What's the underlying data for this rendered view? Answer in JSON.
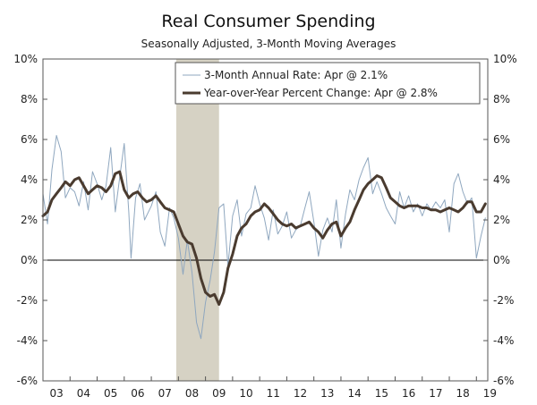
{
  "chart_data": {
    "type": "line",
    "title": "Real Consumer Spending",
    "subtitle": "Seasonally Adjusted, 3-Month Moving Averages",
    "xlabel": "",
    "ylabel": "",
    "x_tick_labels": [
      "03",
      "04",
      "05",
      "06",
      "07",
      "08",
      "09",
      "10",
      "11",
      "12",
      "13",
      "14",
      "15",
      "16",
      "17",
      "18",
      "19"
    ],
    "y_tick_labels": [
      "10%",
      "8%",
      "6%",
      "4%",
      "2%",
      "0%",
      "-2%",
      "-4%",
      "-6%"
    ],
    "y_tick_values": [
      10,
      8,
      6,
      4,
      2,
      0,
      -2,
      -4,
      -6
    ],
    "ylim": [
      -6,
      10
    ],
    "xlim": [
      2003.0,
      2019.42
    ],
    "recession": {
      "start": 2007.92,
      "end": 2009.5
    },
    "legend_placement": "top-right",
    "colors": {
      "three_month": "#8fa7bf",
      "yoy": "#4a3b2f",
      "recession": "#d6d2c4",
      "axis": "#555555"
    },
    "series": [
      {
        "name": "3-Month Annual Rate: Apr @ 2.1%",
        "key": "three_month",
        "points": [
          [
            2003.0,
            3.3
          ],
          [
            2003.17,
            1.8
          ],
          [
            2003.33,
            4.5
          ],
          [
            2003.5,
            6.2
          ],
          [
            2003.67,
            5.4
          ],
          [
            2003.83,
            3.1
          ],
          [
            2004.0,
            3.6
          ],
          [
            2004.17,
            3.4
          ],
          [
            2004.33,
            2.7
          ],
          [
            2004.5,
            3.9
          ],
          [
            2004.67,
            2.5
          ],
          [
            2004.83,
            4.4
          ],
          [
            2005.0,
            3.8
          ],
          [
            2005.17,
            3.0
          ],
          [
            2005.33,
            3.7
          ],
          [
            2005.5,
            5.6
          ],
          [
            2005.67,
            2.4
          ],
          [
            2005.83,
            4.1
          ],
          [
            2006.0,
            5.8
          ],
          [
            2006.17,
            2.4
          ],
          [
            2006.25,
            0.1
          ],
          [
            2006.42,
            3.1
          ],
          [
            2006.58,
            3.8
          ],
          [
            2006.75,
            2.0
          ],
          [
            2007.0,
            2.7
          ],
          [
            2007.17,
            3.4
          ],
          [
            2007.33,
            1.4
          ],
          [
            2007.5,
            0.7
          ],
          [
            2007.67,
            2.6
          ],
          [
            2007.83,
            2.1
          ],
          [
            2008.0,
            1.1
          ],
          [
            2008.17,
            -0.7
          ],
          [
            2008.33,
            1.0
          ],
          [
            2008.5,
            -0.6
          ],
          [
            2008.67,
            -3.1
          ],
          [
            2008.83,
            -3.9
          ],
          [
            2009.0,
            -2.1
          ],
          [
            2009.17,
            -1.0
          ],
          [
            2009.33,
            0.4
          ],
          [
            2009.5,
            2.6
          ],
          [
            2009.67,
            2.8
          ],
          [
            2009.83,
            -0.3
          ],
          [
            2010.0,
            2.2
          ],
          [
            2010.17,
            3.0
          ],
          [
            2010.33,
            1.2
          ],
          [
            2010.5,
            2.3
          ],
          [
            2010.67,
            2.6
          ],
          [
            2010.83,
            3.7
          ],
          [
            2011.0,
            2.8
          ],
          [
            2011.17,
            2.1
          ],
          [
            2011.33,
            1.0
          ],
          [
            2011.5,
            2.5
          ],
          [
            2011.67,
            1.3
          ],
          [
            2011.83,
            1.7
          ],
          [
            2012.0,
            2.4
          ],
          [
            2012.17,
            1.1
          ],
          [
            2012.33,
            1.5
          ],
          [
            2012.5,
            1.7
          ],
          [
            2012.67,
            2.6
          ],
          [
            2012.83,
            3.4
          ],
          [
            2013.0,
            1.9
          ],
          [
            2013.17,
            0.2
          ],
          [
            2013.33,
            1.5
          ],
          [
            2013.5,
            2.1
          ],
          [
            2013.67,
            1.4
          ],
          [
            2013.83,
            3.0
          ],
          [
            2014.0,
            0.6
          ],
          [
            2014.17,
            2.3
          ],
          [
            2014.33,
            3.5
          ],
          [
            2014.5,
            3.0
          ],
          [
            2014.67,
            4.0
          ],
          [
            2014.83,
            4.6
          ],
          [
            2015.0,
            5.1
          ],
          [
            2015.17,
            3.3
          ],
          [
            2015.33,
            3.9
          ],
          [
            2015.5,
            3.3
          ],
          [
            2015.67,
            2.6
          ],
          [
            2015.83,
            2.2
          ],
          [
            2016.0,
            1.8
          ],
          [
            2016.17,
            3.4
          ],
          [
            2016.33,
            2.6
          ],
          [
            2016.5,
            3.2
          ],
          [
            2016.67,
            2.4
          ],
          [
            2016.83,
            2.8
          ],
          [
            2017.0,
            2.2
          ],
          [
            2017.17,
            2.8
          ],
          [
            2017.33,
            2.5
          ],
          [
            2017.5,
            2.9
          ],
          [
            2017.67,
            2.6
          ],
          [
            2017.83,
            3.0
          ],
          [
            2018.0,
            1.4
          ],
          [
            2018.17,
            3.8
          ],
          [
            2018.33,
            4.3
          ],
          [
            2018.5,
            3.4
          ],
          [
            2018.67,
            2.8
          ],
          [
            2018.83,
            3.1
          ],
          [
            2019.0,
            0.1
          ],
          [
            2019.17,
            1.2
          ],
          [
            2019.33,
            2.1
          ]
        ]
      },
      {
        "name": "Year-over-Year Percent Change: Apr @ 2.8%",
        "key": "yoy",
        "points": [
          [
            2003.0,
            2.2
          ],
          [
            2003.17,
            2.4
          ],
          [
            2003.33,
            3.0
          ],
          [
            2003.5,
            3.3
          ],
          [
            2003.67,
            3.6
          ],
          [
            2003.83,
            3.9
          ],
          [
            2004.0,
            3.7
          ],
          [
            2004.17,
            4.0
          ],
          [
            2004.33,
            4.1
          ],
          [
            2004.5,
            3.7
          ],
          [
            2004.67,
            3.3
          ],
          [
            2004.83,
            3.5
          ],
          [
            2005.0,
            3.7
          ],
          [
            2005.17,
            3.6
          ],
          [
            2005.33,
            3.4
          ],
          [
            2005.5,
            3.7
          ],
          [
            2005.67,
            4.3
          ],
          [
            2005.83,
            4.4
          ],
          [
            2006.0,
            3.5
          ],
          [
            2006.17,
            3.1
          ],
          [
            2006.33,
            3.3
          ],
          [
            2006.5,
            3.4
          ],
          [
            2006.67,
            3.1
          ],
          [
            2006.83,
            2.9
          ],
          [
            2007.0,
            3.0
          ],
          [
            2007.17,
            3.2
          ],
          [
            2007.33,
            2.9
          ],
          [
            2007.5,
            2.6
          ],
          [
            2007.67,
            2.5
          ],
          [
            2007.83,
            2.4
          ],
          [
            2008.0,
            1.8
          ],
          [
            2008.17,
            1.2
          ],
          [
            2008.33,
            0.9
          ],
          [
            2008.5,
            0.8
          ],
          [
            2008.67,
            0.1
          ],
          [
            2008.83,
            -0.9
          ],
          [
            2009.0,
            -1.6
          ],
          [
            2009.17,
            -1.8
          ],
          [
            2009.33,
            -1.7
          ],
          [
            2009.5,
            -2.2
          ],
          [
            2009.67,
            -1.6
          ],
          [
            2009.83,
            -0.4
          ],
          [
            2010.0,
            0.3
          ],
          [
            2010.17,
            1.2
          ],
          [
            2010.33,
            1.6
          ],
          [
            2010.5,
            1.8
          ],
          [
            2010.67,
            2.2
          ],
          [
            2010.83,
            2.4
          ],
          [
            2011.0,
            2.5
          ],
          [
            2011.17,
            2.8
          ],
          [
            2011.33,
            2.6
          ],
          [
            2011.5,
            2.3
          ],
          [
            2011.67,
            2.0
          ],
          [
            2011.83,
            1.8
          ],
          [
            2012.0,
            1.7
          ],
          [
            2012.17,
            1.8
          ],
          [
            2012.33,
            1.6
          ],
          [
            2012.5,
            1.7
          ],
          [
            2012.67,
            1.8
          ],
          [
            2012.83,
            1.9
          ],
          [
            2013.0,
            1.6
          ],
          [
            2013.17,
            1.4
          ],
          [
            2013.33,
            1.1
          ],
          [
            2013.5,
            1.5
          ],
          [
            2013.67,
            1.8
          ],
          [
            2013.83,
            1.9
          ],
          [
            2014.0,
            1.2
          ],
          [
            2014.17,
            1.6
          ],
          [
            2014.33,
            1.9
          ],
          [
            2014.5,
            2.5
          ],
          [
            2014.67,
            3.0
          ],
          [
            2014.83,
            3.5
          ],
          [
            2015.0,
            3.8
          ],
          [
            2015.17,
            4.0
          ],
          [
            2015.33,
            4.2
          ],
          [
            2015.5,
            4.1
          ],
          [
            2015.67,
            3.6
          ],
          [
            2015.83,
            3.1
          ],
          [
            2016.0,
            2.9
          ],
          [
            2016.17,
            2.7
          ],
          [
            2016.33,
            2.6
          ],
          [
            2016.5,
            2.7
          ],
          [
            2016.67,
            2.7
          ],
          [
            2016.83,
            2.7
          ],
          [
            2017.0,
            2.6
          ],
          [
            2017.17,
            2.6
          ],
          [
            2017.33,
            2.5
          ],
          [
            2017.5,
            2.5
          ],
          [
            2017.67,
            2.4
          ],
          [
            2017.83,
            2.5
          ],
          [
            2018.0,
            2.6
          ],
          [
            2018.17,
            2.5
          ],
          [
            2018.33,
            2.4
          ],
          [
            2018.5,
            2.6
          ],
          [
            2018.67,
            2.9
          ],
          [
            2018.83,
            2.9
          ],
          [
            2019.0,
            2.4
          ],
          [
            2019.17,
            2.4
          ],
          [
            2019.33,
            2.8
          ]
        ]
      }
    ]
  }
}
